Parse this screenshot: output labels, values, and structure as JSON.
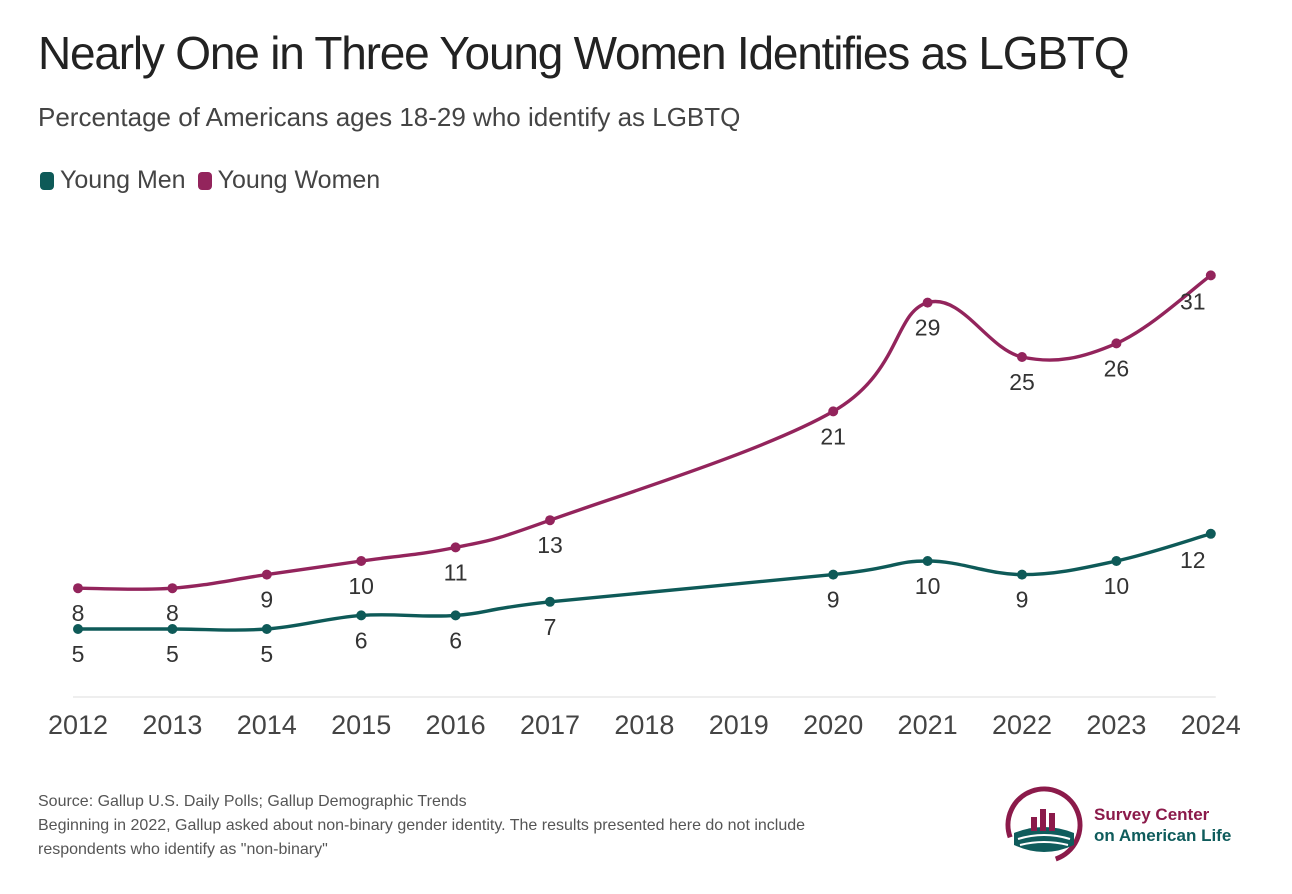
{
  "title": "Nearly One in Three Young Women Identifies as LGBTQ",
  "subtitle": "Percentage of Americans ages 18-29 who identify as LGBTQ",
  "colors": {
    "men": "#0e5a58",
    "women": "#93245c",
    "axis": "#dddddd",
    "text": "#333333"
  },
  "chart_data": {
    "type": "line",
    "title": "Nearly One in Three Young Women Identifies as LGBTQ",
    "subtitle": "Percentage of Americans ages 18-29 who identify as LGBTQ",
    "x_ticks": [
      "2012",
      "2013",
      "2014",
      "2015",
      "2016",
      "2017",
      "2018",
      "2019",
      "2020",
      "2021",
      "2022",
      "2023",
      "2024"
    ],
    "ylim": [
      0,
      35
    ],
    "grid": false,
    "legend_placement": "top-left",
    "series": [
      {
        "name": "Young Men",
        "color": "#0e5a58",
        "x": [
          2012,
          2013,
          2014,
          2015,
          2016,
          2017,
          2020,
          2021,
          2022,
          2023,
          2024
        ],
        "values": [
          5,
          5,
          5,
          6,
          6,
          7,
          9,
          10,
          9,
          10,
          12
        ]
      },
      {
        "name": "Young Women",
        "color": "#93245c",
        "x": [
          2012,
          2013,
          2014,
          2015,
          2016,
          2017,
          2020,
          2021,
          2022,
          2023,
          2024
        ],
        "values": [
          8,
          8,
          9,
          10,
          11,
          13,
          21,
          29,
          25,
          26,
          31
        ]
      }
    ]
  },
  "footer": {
    "source": "Source: Gallup U.S. Daily Polls; Gallup Demographic Trends",
    "note_line1": "Beginning in 2022, Gallup asked about non-binary gender identity. The results presented here do not include",
    "note_line2": "respondents who identify as \"non-binary\""
  },
  "logo": {
    "line1": "Survey Center",
    "line2": "on American Life",
    "icon": "bar-chart-globe-logo"
  }
}
